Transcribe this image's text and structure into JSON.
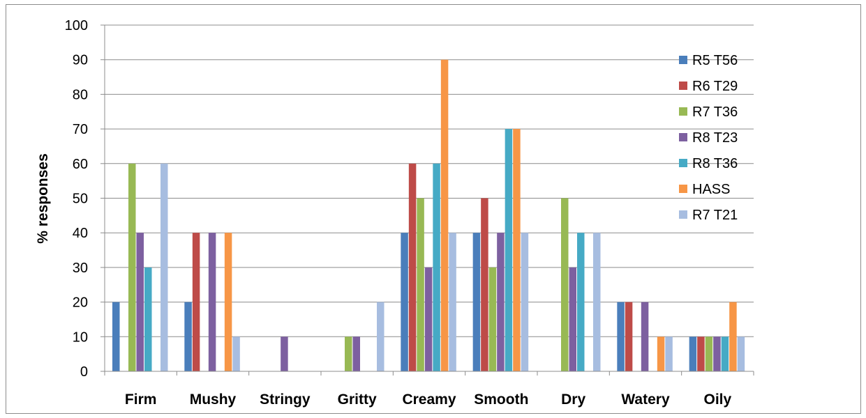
{
  "chart_data": {
    "type": "bar",
    "title": "",
    "xlabel": "",
    "ylabel": "% responses",
    "ylim": [
      0,
      100
    ],
    "yticks": [
      0,
      10,
      20,
      30,
      40,
      50,
      60,
      70,
      80,
      90,
      100
    ],
    "grid": true,
    "legend_position": "right",
    "categories": [
      "Firm",
      "Mushy",
      "Stringy",
      "Gritty",
      "Creamy",
      "Smooth",
      "Dry",
      "Watery",
      "Oily"
    ],
    "series": [
      {
        "name": "R5 T56",
        "color": "#4a7ebb",
        "values": [
          20,
          20,
          0,
          0,
          40,
          40,
          0,
          20,
          10
        ]
      },
      {
        "name": "R6 T29",
        "color": "#be4b48",
        "values": [
          0,
          40,
          0,
          0,
          60,
          50,
          0,
          20,
          10
        ]
      },
      {
        "name": "R7 T36",
        "color": "#98b954",
        "values": [
          60,
          0,
          0,
          10,
          50,
          30,
          50,
          0,
          10
        ]
      },
      {
        "name": "R8 T23",
        "color": "#7d60a0",
        "values": [
          40,
          40,
          10,
          10,
          30,
          40,
          30,
          20,
          10
        ]
      },
      {
        "name": "R8 T36",
        "color": "#46aac5",
        "values": [
          30,
          0,
          0,
          0,
          60,
          70,
          40,
          0,
          10
        ]
      },
      {
        "name": "HASS",
        "color": "#f79646",
        "values": [
          0,
          40,
          0,
          0,
          90,
          70,
          0,
          10,
          20
        ]
      },
      {
        "name": "R7 T21",
        "color": "#a7bde0",
        "values": [
          60,
          10,
          0,
          20,
          40,
          40,
          40,
          10,
          10
        ]
      }
    ]
  }
}
